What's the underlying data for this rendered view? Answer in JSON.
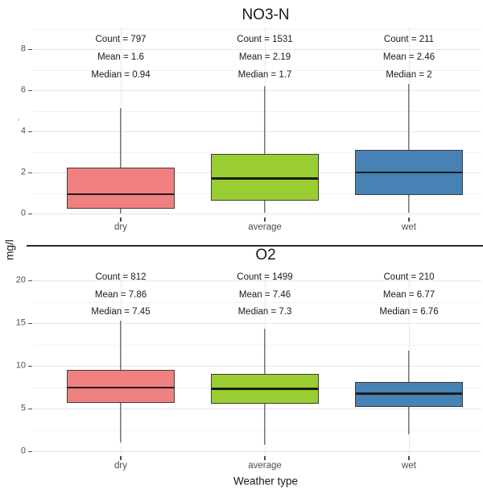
{
  "figure": {
    "y_axis_shared_label": "mg/l",
    "x_axis_label": "Weather type",
    "stray_mark": "'",
    "annotation_labels": {
      "count": "Count",
      "mean": "Mean",
      "median": "Median"
    },
    "colors": {
      "background": "#ffffff",
      "box_border": "#3d3d3d",
      "median_line": "#1c1c1c",
      "whisker": "#3d3d3d",
      "grid_major": "#e6e6e6",
      "grid_minor": "#f2f2f2",
      "grid_vertical": "#e9e9e9",
      "tick_label": "#4d4d4d",
      "separator": "#2b2b2b",
      "fill_dry": "#F08080",
      "fill_average": "#9ACD32",
      "fill_wet": "#4682B4"
    }
  },
  "chart_data": [
    {
      "type": "boxplot",
      "title": "NO3-N",
      "ylabel": "mg/l",
      "xlabel": "",
      "categories": [
        "dry",
        "average",
        "wet"
      ],
      "y_ticks": [
        0,
        2,
        4,
        6,
        8
      ],
      "y_minor_ticks": [
        1,
        3,
        5,
        7,
        9
      ],
      "ylim": [
        -0.3,
        9.1
      ],
      "grid": true,
      "legend": "none",
      "series": [
        {
          "category": "dry",
          "count": 797,
          "mean": 1.6,
          "median": 0.94,
          "whisker_low": 0.01,
          "q1": 0.22,
          "q3": 2.24,
          "whisker_high": 5.15,
          "fill": "#F08080"
        },
        {
          "category": "average",
          "count": 1531,
          "mean": 2.19,
          "median": 1.7,
          "whisker_low": 0.02,
          "q1": 0.62,
          "q3": 2.9,
          "whisker_high": 6.2,
          "fill": "#9ACD32"
        },
        {
          "category": "wet",
          "count": 211,
          "mean": 2.46,
          "median": 2,
          "whisker_low": 0.03,
          "q1": 0.92,
          "q3": 3.1,
          "whisker_high": 6.3,
          "fill": "#4682B4"
        }
      ]
    },
    {
      "type": "boxplot",
      "title": "O2",
      "ylabel": "mg/l",
      "xlabel": "Weather type",
      "categories": [
        "dry",
        "average",
        "wet"
      ],
      "y_ticks": [
        0,
        5,
        10,
        15,
        20
      ],
      "y_minor_ticks": [
        2.5,
        7.5,
        12.5,
        17.5
      ],
      "ylim": [
        -0.6,
        20.8
      ],
      "grid": true,
      "legend": "none",
      "series": [
        {
          "category": "dry",
          "count": 812,
          "mean": 7.86,
          "median": 7.45,
          "whisker_low": 1.0,
          "q1": 5.7,
          "q3": 9.5,
          "whisker_high": 15.3,
          "fill": "#F08080"
        },
        {
          "category": "average",
          "count": 1499,
          "mean": 7.46,
          "median": 7.3,
          "whisker_low": 0.8,
          "q1": 5.6,
          "q3": 9.1,
          "whisker_high": 14.3,
          "fill": "#9ACD32"
        },
        {
          "category": "wet",
          "count": 210,
          "mean": 6.77,
          "median": 6.76,
          "whisker_low": 2.0,
          "q1": 5.2,
          "q3": 8.1,
          "whisker_high": 11.8,
          "fill": "#4682B4"
        }
      ]
    }
  ]
}
